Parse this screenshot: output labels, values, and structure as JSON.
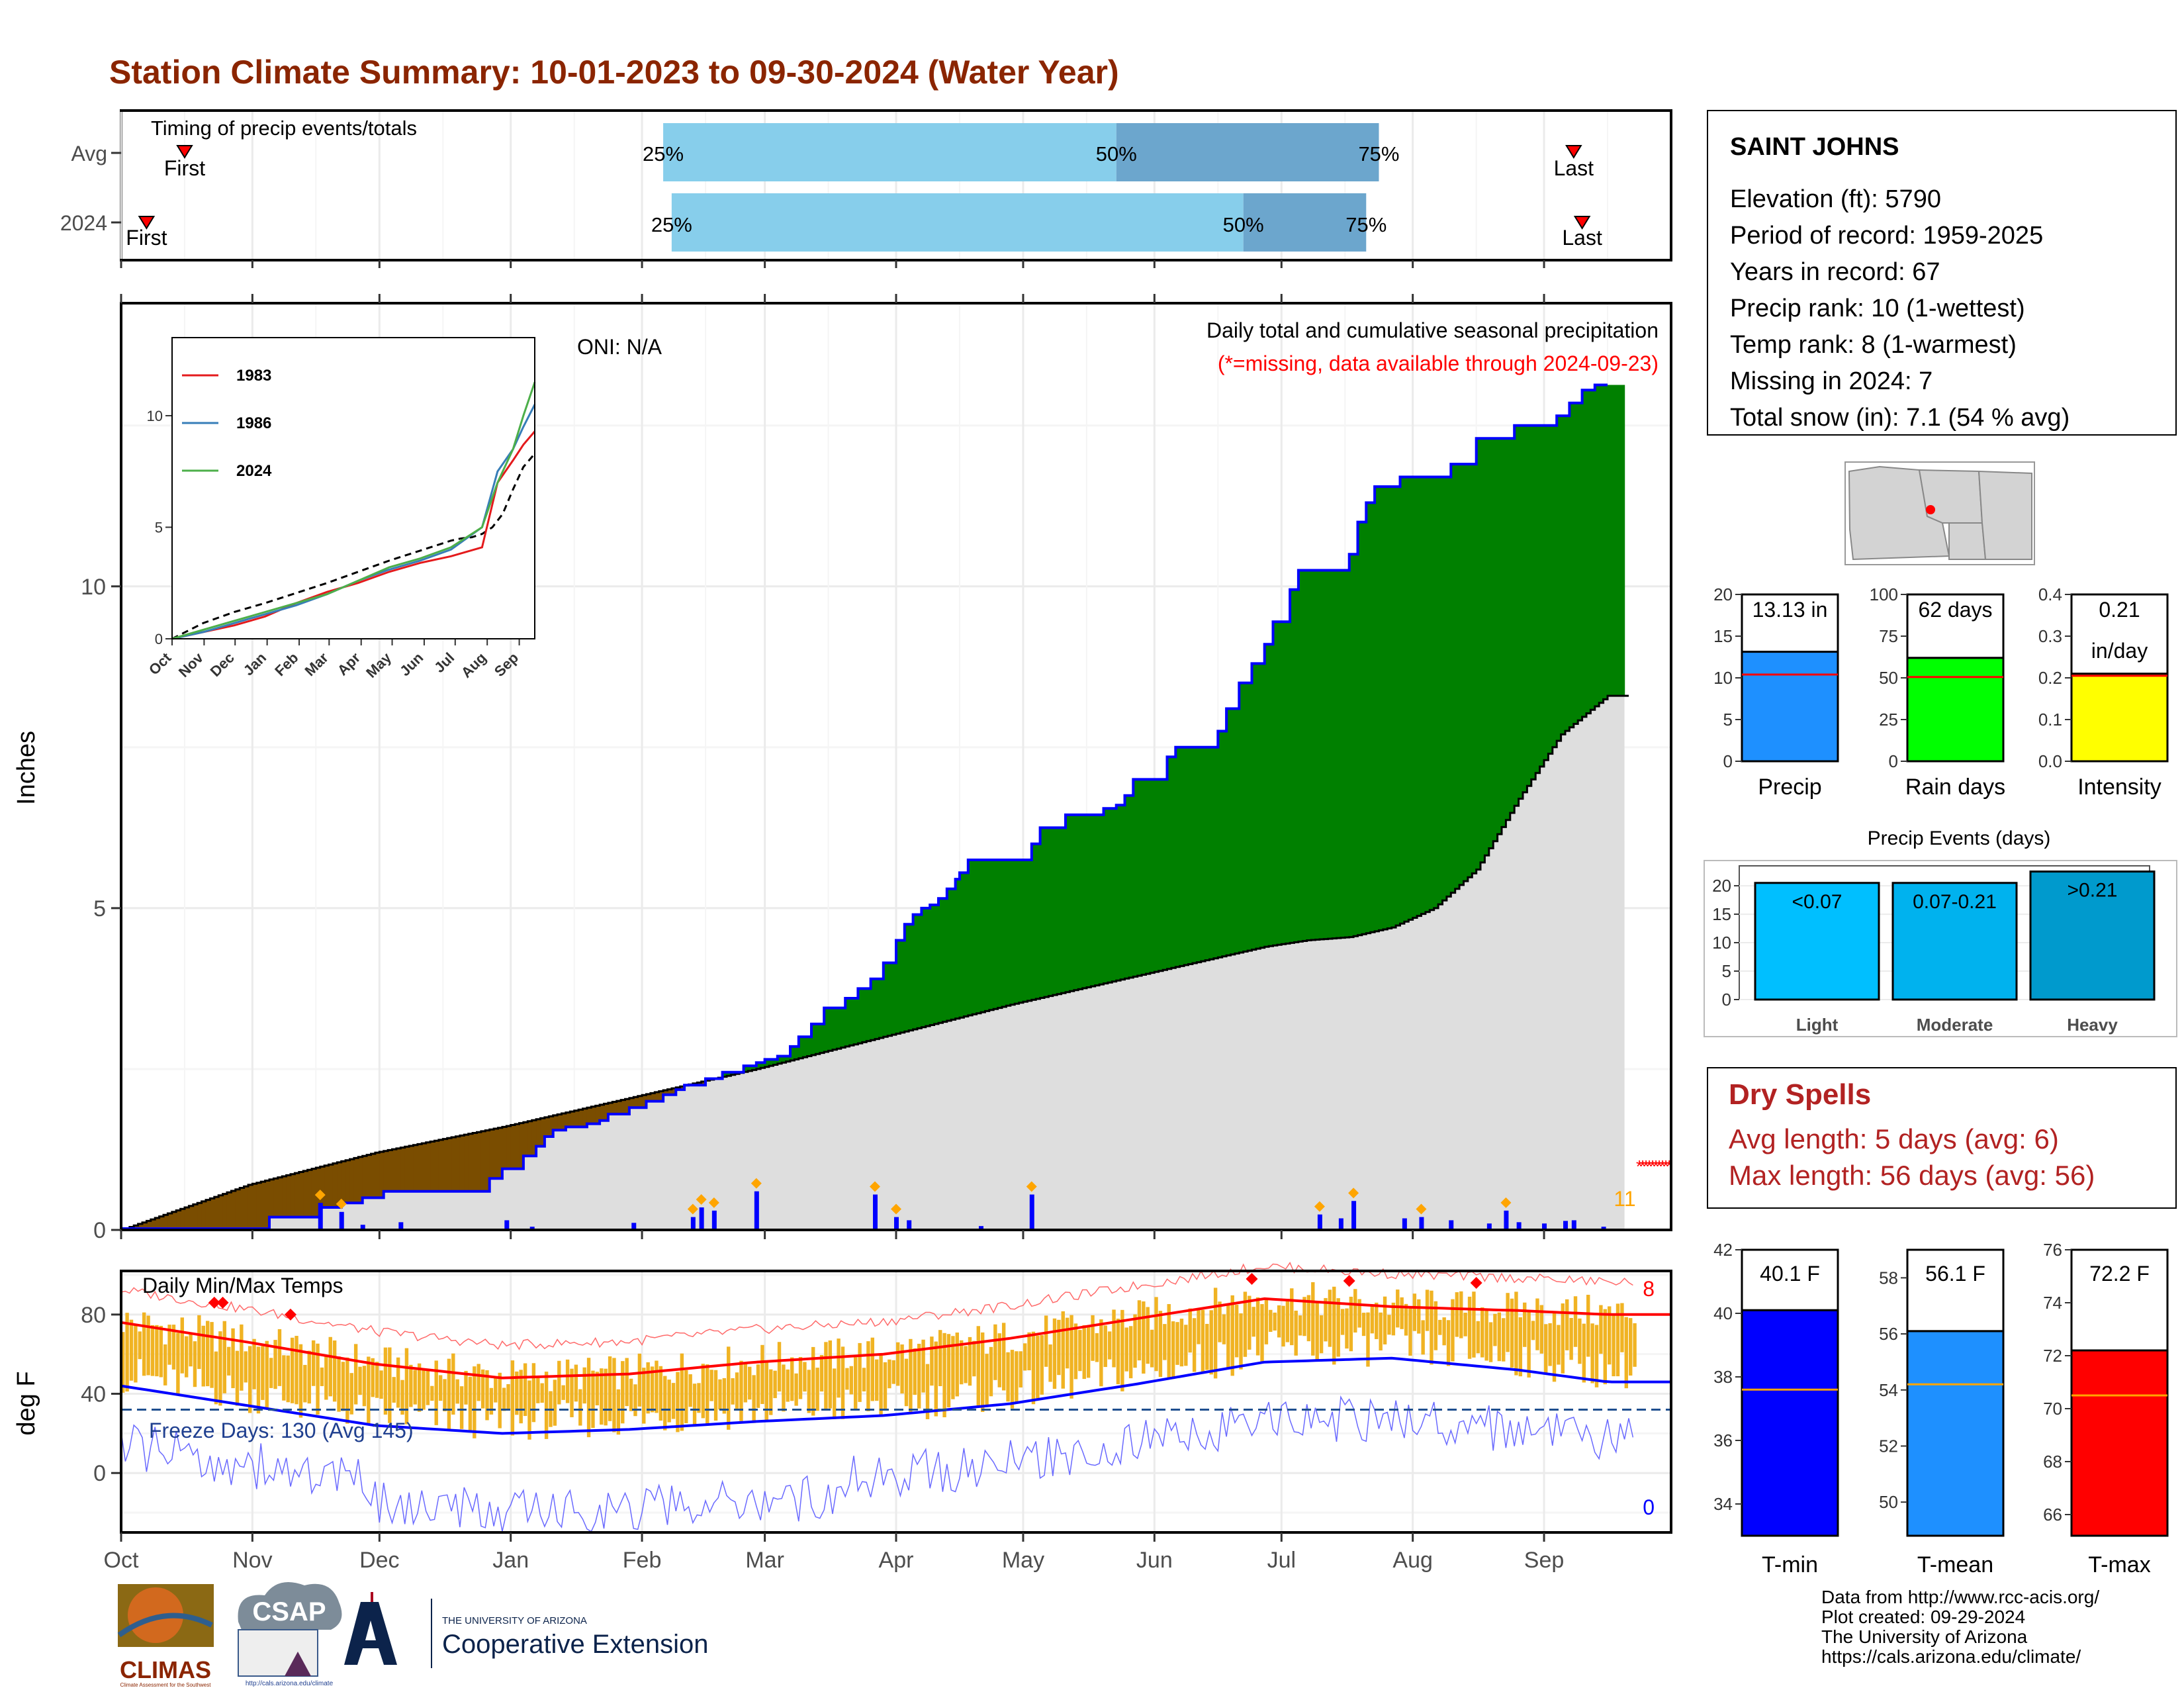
{
  "title": "Station Climate Summary: 10-01-2023 to 09-30-2024 (Water Year)",
  "colors": {
    "title": "#8b2500",
    "cum_2024": "#008000",
    "cum_2024_line": "#0000ff",
    "cum_avg_fill": "#dedede",
    "deficit": "#7a4d00",
    "daily_bar": "#0000ff",
    "timing_light": "#87ceeb",
    "timing_dark": "#6ca6cd",
    "tmax": "#ff0000",
    "tmin": "#0000ff",
    "temp_bar": "#f0b323",
    "precip_bar": "#1e90ff",
    "raindays_bar": "#00ff00",
    "intensity_bar": "#ffff00",
    "light": "#00bfff",
    "moderate": "#00b2ee",
    "heavy": "#009acd",
    "dry_spells": "#b22222"
  },
  "timing": {
    "title": "Timing of precip events/totals",
    "rows": [
      {
        "label": "Avg",
        "first_doy": 15,
        "p25_doy": 128,
        "p50_doy": 235,
        "p75_doy": 297,
        "last_doy": 343
      },
      {
        "label": "2024",
        "first_doy": 6,
        "p25_doy": 130,
        "p50_doy": 265,
        "p75_doy": 294,
        "last_doy": 345
      }
    ],
    "marker_labels": {
      "first": "First",
      "last": "Last",
      "p25": "25%",
      "p50": "50%",
      "p75": "75%"
    }
  },
  "main": {
    "header": "Daily total and cumulative seasonal precipitation",
    "missing_note": "(*=missing, data available through 2024-09-23)",
    "oni": "ONI: N/A",
    "ylabel": "Inches",
    "missing_count": "11",
    "yticks": [
      "0",
      "5",
      "10"
    ],
    "xticks": [
      "Oct",
      "Nov",
      "Dec",
      "Jan",
      "Feb",
      "Mar",
      "Apr",
      "May",
      "Jun",
      "Jul",
      "Aug",
      "Sep"
    ]
  },
  "inset": {
    "legend": [
      "1983",
      "1986",
      "2024"
    ],
    "yticks": [
      "0",
      "5",
      "10"
    ],
    "xticks": [
      "Oct",
      "Nov",
      "Dec",
      "Jan",
      "Feb",
      "Mar",
      "Apr",
      "May",
      "Jun",
      "Jul",
      "Aug",
      "Sep"
    ]
  },
  "temps": {
    "title": "Daily Min/Max Temps",
    "freeze": "Freeze Days: 130 (Avg 145)",
    "record_high_count": "8",
    "record_low_count": "0",
    "ylabel": "deg F",
    "yticks": [
      "0",
      "40",
      "80"
    ]
  },
  "station": {
    "name": "SAINT JOHNS",
    "lines": [
      "Elevation (ft): 5790",
      "Period of record: 1959-2025",
      "Years in record: 67",
      "Precip rank: 10 (1-wettest)",
      "Temp rank: 8 (1-warmest)",
      "Missing in 2024: 7",
      "Total snow (in): 7.1 (54 % avg)"
    ]
  },
  "mini_precip": [
    {
      "label": "Precip",
      "box": "13.13 in",
      "box2": "",
      "value": 13.13,
      "avg": 10.4,
      "ymax": 20,
      "yticks": [
        "0",
        "5",
        "10",
        "15",
        "20"
      ]
    },
    {
      "label": "Rain days",
      "box": "62 days",
      "box2": "",
      "value": 62,
      "avg": 50.5,
      "ymax": 100,
      "yticks": [
        "0",
        "25",
        "50",
        "75",
        "100"
      ]
    },
    {
      "label": "Intensity",
      "box": "0.21",
      "box2": "in/day",
      "value": 0.21,
      "avg": 0.205,
      "ymax": 0.4,
      "yticks": [
        "0.0",
        "0.1",
        "0.2",
        "0.3",
        "0.4"
      ]
    }
  ],
  "events": {
    "title": "Precip Events (days)",
    "bars": [
      {
        "cat": "Light",
        "label": "<0.07",
        "value": 20.5
      },
      {
        "cat": "Moderate",
        "label": "0.07-0.21",
        "value": 20.5
      },
      {
        "cat": "Heavy",
        "label": ">0.21",
        "value": 22.5
      }
    ],
    "yticks": [
      "0",
      "5",
      "10",
      "15",
      "20"
    ]
  },
  "dry_spells": {
    "title": "Dry Spells",
    "avg": "Avg length: 5 days (avg: 6)",
    "max": "Max length: 56 days (avg: 56)"
  },
  "mini_temps": [
    {
      "label": "T-min",
      "box": "40.1 F",
      "value": 40.1,
      "avg": 37.6,
      "ymin": 33,
      "ymax": 42,
      "ticks": [
        34,
        36,
        38,
        40,
        42
      ]
    },
    {
      "label": "T-mean",
      "box": "56.1 F",
      "value": 56.1,
      "avg": 54.2,
      "ymin": 48.8,
      "ymax": 59,
      "ticks": [
        50,
        52,
        54,
        56,
        58
      ]
    },
    {
      "label": "T-max",
      "box": "72.2 F",
      "value": 72.2,
      "avg": 70.5,
      "ymin": 65.2,
      "ymax": 76,
      "ticks": [
        66,
        68,
        70,
        72,
        74,
        76
      ]
    }
  ],
  "credits": [
    "Data from http://www.rcc-acis.org/",
    "Plot created: 09-29-2024",
    "The University of Arizona",
    "https://cals.arizona.edu/climate/"
  ],
  "logos": {
    "climas": "CLIMAS",
    "climas_sub": "Climate Assessment for the Southwest",
    "csap": "CSAP",
    "csap_url": "http://cals.arizona.edu/climate",
    "ua_small": "THE UNIVERSITY OF ARIZONA",
    "coop": "Cooperative Extension"
  },
  "chart_data": [
    {
      "type": "area",
      "title": "Daily total and cumulative seasonal precipitation",
      "ylabel": "Inches",
      "ylim": [
        0,
        14.4
      ],
      "x_unit": "day of water year (Oct 1 = 0)",
      "series": [
        {
          "name": "2024",
          "x": [
            0,
            35,
            47,
            52,
            57,
            62,
            87,
            90,
            95,
            98,
            100,
            102,
            105,
            110,
            113,
            115,
            120,
            124,
            128,
            131,
            133,
            138,
            142,
            147,
            150,
            152,
            155,
            158,
            160,
            163,
            166,
            171,
            174,
            177,
            180,
            183,
            185,
            187,
            189,
            191,
            193,
            195,
            197,
            198,
            200,
            206,
            210,
            215,
            217,
            223,
            228,
            232,
            235,
            237,
            239,
            247,
            249,
            256,
            259,
            261,
            264,
            267,
            270,
            272,
            276,
            278,
            290,
            292,
            294,
            296,
            302,
            314,
            320,
            329,
            339,
            342,
            345,
            348,
            351
          ],
          "y": [
            0.02,
            0.2,
            0.35,
            0.42,
            0.5,
            0.6,
            0.8,
            0.95,
            1.15,
            1.3,
            1.45,
            1.55,
            1.6,
            1.65,
            1.7,
            1.8,
            1.9,
            2.0,
            2.1,
            2.18,
            2.25,
            2.35,
            2.45,
            2.55,
            2.6,
            2.65,
            2.7,
            2.85,
            3.0,
            3.2,
            3.45,
            3.6,
            3.75,
            3.9,
            4.15,
            4.5,
            4.75,
            4.9,
            5.0,
            5.05,
            5.15,
            5.3,
            5.45,
            5.55,
            5.75,
            5.75,
            5.75,
            6.0,
            6.25,
            6.45,
            6.45,
            6.55,
            6.6,
            6.75,
            7.0,
            7.35,
            7.5,
            7.5,
            7.75,
            8.1,
            8.5,
            8.8,
            9.1,
            9.45,
            9.95,
            10.25,
            10.5,
            11.0,
            11.3,
            11.55,
            11.7,
            11.9,
            12.3,
            12.5,
            12.65,
            12.85,
            13.05,
            13.13,
            13.13
          ]
        },
        {
          "name": "Avg",
          "x": [
            0,
            30,
            60,
            90,
            120,
            150,
            180,
            210,
            240,
            250,
            260,
            270,
            280,
            290,
            300,
            310,
            320,
            330,
            340,
            351
          ],
          "y": [
            0.0,
            0.7,
            1.2,
            1.6,
            2.05,
            2.5,
            3.0,
            3.5,
            3.95,
            4.1,
            4.25,
            4.4,
            4.5,
            4.55,
            4.7,
            5.0,
            5.6,
            6.7,
            7.7,
            8.3
          ]
        }
      ],
      "daily_bars": {
        "x": [
          47,
          52,
          57,
          66,
          91,
          97,
          121,
          135,
          137,
          140,
          150,
          178,
          183,
          186,
          203,
          215,
          283,
          288,
          291,
          303,
          307,
          314,
          323,
          327,
          330,
          336,
          341,
          343,
          350
        ],
        "y": [
          0.42,
          0.28,
          0.08,
          0.12,
          0.15,
          0.05,
          0.11,
          0.2,
          0.35,
          0.3,
          0.6,
          0.55,
          0.2,
          0.15,
          0.06,
          0.55,
          0.24,
          0.18,
          0.45,
          0.18,
          0.2,
          0.15,
          0.1,
          0.3,
          0.12,
          0.1,
          0.14,
          0.15,
          0.05
        ]
      }
    },
    {
      "type": "line",
      "title": "Timing inset (cumulative precip)",
      "ylim": [
        0,
        13.5
      ],
      "series": [
        {
          "name": "1983",
          "x": [
            0,
            30,
            60,
            90,
            120,
            150,
            180,
            210,
            240,
            270,
            300,
            315,
            330,
            340,
            351
          ],
          "y": [
            0.0,
            0.3,
            0.6,
            1.0,
            1.6,
            2.1,
            2.5,
            3.0,
            3.4,
            3.7,
            4.1,
            7.0,
            8.0,
            8.7,
            9.3
          ]
        },
        {
          "name": "1986",
          "x": [
            0,
            30,
            60,
            90,
            120,
            150,
            180,
            210,
            240,
            270,
            300,
            315,
            330,
            340,
            351
          ],
          "y": [
            0.0,
            0.3,
            0.7,
            1.1,
            1.5,
            2.0,
            2.6,
            3.1,
            3.5,
            4.0,
            5.0,
            7.5,
            8.5,
            9.5,
            10.5
          ]
        },
        {
          "name": "2024",
          "x": [
            0,
            30,
            60,
            90,
            120,
            150,
            180,
            210,
            240,
            270,
            300,
            315,
            330,
            340,
            351
          ],
          "y": [
            0.0,
            0.4,
            0.8,
            1.2,
            1.6,
            2.0,
            2.6,
            3.2,
            3.6,
            4.1,
            5.0,
            7.0,
            8.5,
            10.0,
            11.5
          ]
        }
      ]
    },
    {
      "type": "line",
      "title": "Daily Min/Max Temps",
      "ylabel": "deg F",
      "ylim": [
        -30,
        102
      ],
      "series": [
        {
          "name": "Avg Tmax",
          "x": [
            0,
            30,
            60,
            90,
            120,
            150,
            180,
            210,
            240,
            270,
            300,
            330,
            351
          ],
          "y": [
            76,
            66,
            55,
            48,
            50,
            56,
            60,
            68,
            78,
            88,
            84,
            82,
            80
          ]
        },
        {
          "name": "Avg Tmin",
          "x": [
            0,
            30,
            60,
            90,
            120,
            150,
            180,
            210,
            240,
            270,
            300,
            330,
            351
          ],
          "y": [
            44,
            34,
            24,
            20,
            22,
            26,
            29,
            35,
            45,
            56,
            58,
            52,
            46
          ]
        },
        {
          "name": "Freeze line",
          "x": [
            0,
            351
          ],
          "y": [
            32,
            32
          ]
        }
      ]
    }
  ]
}
